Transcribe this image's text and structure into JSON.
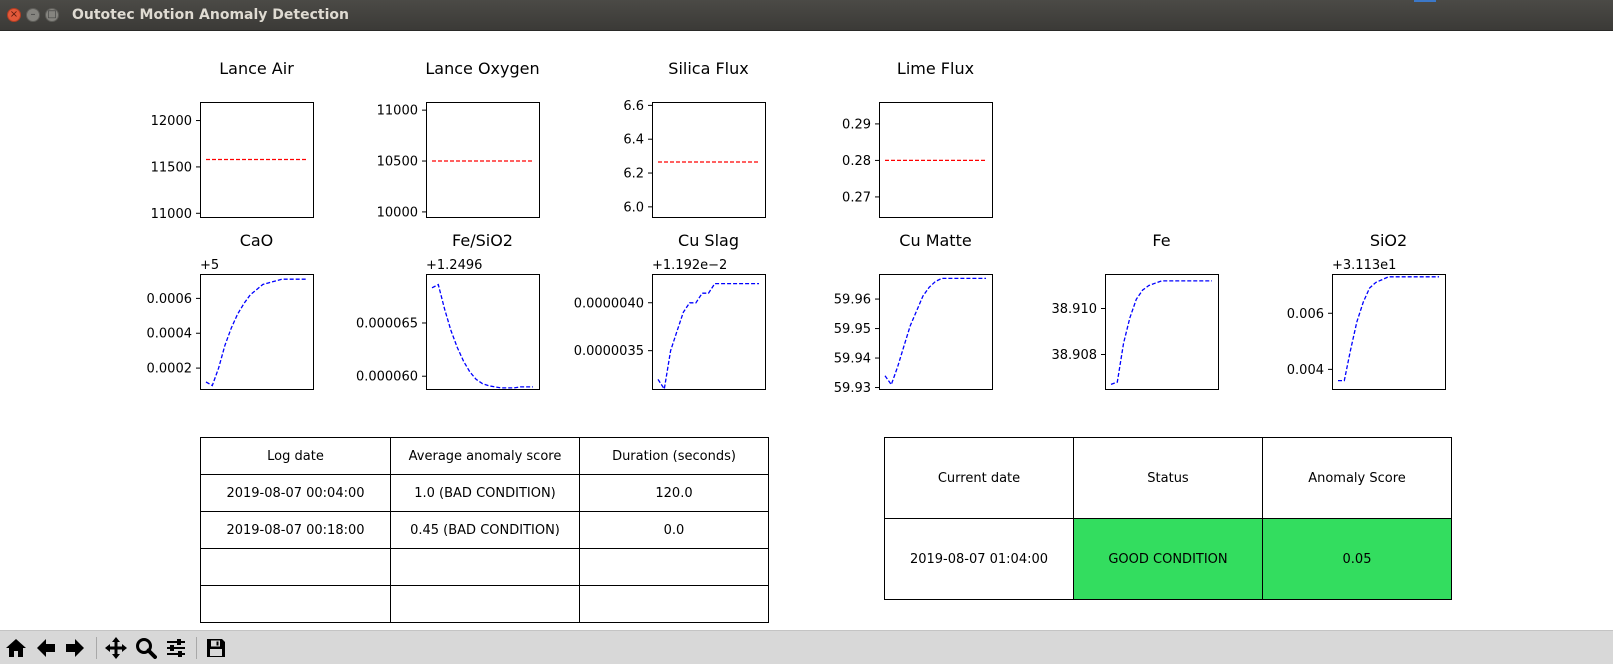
{
  "window": {
    "title": "Outotec Motion Anomaly Detection",
    "buttons": {
      "close": "×",
      "minimize": "–",
      "maximize": "□"
    }
  },
  "charts": {
    "chart_data": [
      {
        "type": "line",
        "title": "Lance Air",
        "offset": "",
        "color": "#ff0000",
        "style": "dashed",
        "ylim": [
          10960,
          12200
        ],
        "yticks": [
          11000,
          11500,
          12000
        ],
        "ytick_labels": [
          "11000",
          "11500",
          "12000"
        ],
        "x": [
          0,
          1,
          2,
          3,
          4,
          5,
          6,
          7,
          8,
          9,
          10
        ],
        "y": [
          11580,
          11580,
          11580,
          11580,
          11580,
          11580,
          11580,
          11580,
          11580,
          11580,
          11580
        ]
      },
      {
        "type": "line",
        "title": "Lance Oxygen",
        "offset": "",
        "color": "#ff0000",
        "style": "dashed",
        "ylim": [
          9950,
          11080
        ],
        "yticks": [
          10000,
          10500,
          11000
        ],
        "ytick_labels": [
          "10000",
          "10500",
          "11000"
        ],
        "x": [
          0,
          1,
          2,
          3,
          4,
          5,
          6,
          7,
          8,
          9,
          10
        ],
        "y": [
          10500,
          10500,
          10500,
          10500,
          10500,
          10500,
          10500,
          10500,
          10500,
          10500,
          10500
        ]
      },
      {
        "type": "line",
        "title": "Silica Flux",
        "offset": "",
        "color": "#ff0000",
        "style": "dashed",
        "ylim": [
          5.94,
          6.62
        ],
        "yticks": [
          6.0,
          6.2,
          6.4,
          6.6
        ],
        "ytick_labels": [
          "6.0",
          "6.2",
          "6.4",
          "6.6"
        ],
        "x": [
          0,
          1,
          2,
          3,
          4,
          5,
          6,
          7,
          8,
          9,
          10
        ],
        "y": [
          6.265,
          6.265,
          6.265,
          6.265,
          6.265,
          6.265,
          6.265,
          6.265,
          6.265,
          6.265,
          6.265
        ]
      },
      {
        "type": "line",
        "title": "Lime Flux",
        "offset": "",
        "color": "#ff0000",
        "style": "dashed",
        "ylim": [
          0.2645,
          0.296
        ],
        "yticks": [
          0.27,
          0.28,
          0.29
        ],
        "ytick_labels": [
          "0.27",
          "0.28",
          "0.29"
        ],
        "x": [
          0,
          1,
          2,
          3,
          4,
          5,
          6,
          7,
          8,
          9,
          10
        ],
        "y": [
          0.28,
          0.28,
          0.28,
          0.28,
          0.28,
          0.28,
          0.28,
          0.28,
          0.28,
          0.28,
          0.28
        ]
      },
      {
        "type": "line",
        "title": "CaO",
        "offset": "+5",
        "color": "#0000ff",
        "style": "dashed",
        "ylim": [
          8e-05,
          0.00074
        ],
        "yticks": [
          0.0002,
          0.0004,
          0.0006
        ],
        "ytick_labels": [
          "0.0002",
          "0.0004",
          "0.0006"
        ],
        "x": [
          0,
          1,
          2,
          3,
          4,
          5,
          6,
          7,
          8,
          9,
          10,
          11,
          12,
          13,
          14,
          15,
          16
        ],
        "y": [
          0.00012,
          0.0001,
          0.0002,
          0.00033,
          0.00043,
          0.00051,
          0.00057,
          0.00062,
          0.00065,
          0.00068,
          0.00069,
          0.0007,
          0.00071,
          0.00071,
          0.00071,
          0.00071,
          0.00071
        ]
      },
      {
        "type": "line",
        "title": "Fe/SiO2",
        "offset": "+1.2496",
        "color": "#0000ff",
        "style": "dashed",
        "ylim": [
          5.88e-05,
          6.96e-05
        ],
        "yticks": [
          6e-05,
          6.5e-05
        ],
        "ytick_labels": [
          "0.000060",
          "0.000065"
        ],
        "x": [
          0,
          1,
          2,
          3,
          4,
          5,
          6,
          7,
          8,
          9,
          10,
          11,
          12,
          13,
          14,
          15,
          16
        ],
        "y": [
          6.83e-05,
          6.86e-05,
          6.63e-05,
          6.43e-05,
          6.27e-05,
          6.14e-05,
          6.04e-05,
          5.97e-05,
          5.93e-05,
          5.91e-05,
          5.9e-05,
          5.89e-05,
          5.89e-05,
          5.89e-05,
          5.9e-05,
          5.9e-05,
          5.9e-05
        ]
      },
      {
        "type": "line",
        "title": "Cu Slag",
        "offset": "+1.192e−2",
        "color": "#0000ff",
        "style": "dashed",
        "ylim": [
          3.1e-06,
          4.3e-06
        ],
        "yticks": [
          3.5e-06,
          4e-06
        ],
        "ytick_labels": [
          "0.0000035",
          "0.0000040"
        ],
        "x": [
          0,
          1,
          2,
          3,
          4,
          5,
          6,
          7,
          8,
          9,
          10,
          11,
          12,
          13,
          14,
          15,
          16
        ],
        "y": [
          3.2e-06,
          3.1e-06,
          3.5e-06,
          3.7e-06,
          3.9e-06,
          4e-06,
          4e-06,
          4.1e-06,
          4.1e-06,
          4.2e-06,
          4.2e-06,
          4.2e-06,
          4.2e-06,
          4.2e-06,
          4.2e-06,
          4.2e-06,
          4.2e-06
        ]
      },
      {
        "type": "line",
        "title": "Cu Matte",
        "offset": "",
        "color": "#0000ff",
        "style": "dashed",
        "ylim": [
          59.9295,
          59.9685
        ],
        "yticks": [
          59.93,
          59.94,
          59.95,
          59.96
        ],
        "ytick_labels": [
          "59.93",
          "59.94",
          "59.95",
          "59.96"
        ],
        "x": [
          0,
          1,
          2,
          3,
          4,
          5,
          6,
          7,
          8,
          9,
          10,
          11,
          12,
          13,
          14,
          15,
          16
        ],
        "y": [
          59.934,
          59.931,
          59.937,
          59.944,
          59.951,
          59.956,
          59.961,
          59.964,
          59.966,
          59.967,
          59.967,
          59.967,
          59.967,
          59.967,
          59.967,
          59.967,
          59.967
        ]
      },
      {
        "type": "line",
        "title": "Fe",
        "offset": "",
        "color": "#0000ff",
        "style": "dashed",
        "ylim": [
          38.9065,
          38.9115
        ],
        "yticks": [
          38.908,
          38.91
        ],
        "ytick_labels": [
          "38.908",
          "38.910"
        ],
        "x": [
          0,
          1,
          2,
          3,
          4,
          5,
          6,
          7,
          8,
          9,
          10,
          11,
          12,
          13,
          14,
          15,
          16
        ],
        "y": [
          38.9067,
          38.9068,
          38.9085,
          38.9096,
          38.9104,
          38.9108,
          38.911,
          38.9111,
          38.9112,
          38.9112,
          38.9112,
          38.9112,
          38.9112,
          38.9112,
          38.9112,
          38.9112,
          38.9112
        ]
      },
      {
        "type": "line",
        "title": "SiO2",
        "offset": "+3.113e1",
        "color": "#0000ff",
        "style": "dashed",
        "ylim": [
          0.0033,
          0.0074
        ],
        "yticks": [
          0.004,
          0.006
        ],
        "ytick_labels": [
          "0.004",
          "0.006"
        ],
        "x": [
          0,
          1,
          2,
          3,
          4,
          5,
          6,
          7,
          8,
          9,
          10,
          11,
          12,
          13,
          14,
          15,
          16
        ],
        "y": [
          0.0036,
          0.0036,
          0.0047,
          0.0057,
          0.0064,
          0.0069,
          0.0071,
          0.0072,
          0.0073,
          0.0073,
          0.0073,
          0.0073,
          0.0073,
          0.0073,
          0.0073,
          0.0073,
          0.0073
        ]
      }
    ]
  },
  "log_table": {
    "headers": [
      "Log date",
      "Average anomaly score",
      "Duration (seconds)"
    ],
    "rows": [
      [
        "2019-08-07 00:04:00",
        "1.0 (BAD CONDITION)",
        "120.0"
      ],
      [
        "2019-08-07 00:18:00",
        "0.45 (BAD CONDITION)",
        "0.0"
      ],
      [
        "",
        "",
        ""
      ],
      [
        "",
        "",
        ""
      ]
    ]
  },
  "status_table": {
    "headers": [
      "Current date",
      "Status",
      "Anomaly Score"
    ],
    "current_date": "2019-08-07 01:04:00",
    "status": "GOOD CONDITION",
    "anomaly_score": "0.05",
    "status_color": "#33dd5f"
  },
  "toolbar": {
    "icons": [
      "home-icon",
      "back-arrow-icon",
      "forward-arrow-icon",
      "pan-icon",
      "zoom-icon",
      "configure-subplots-icon",
      "save-icon"
    ]
  }
}
